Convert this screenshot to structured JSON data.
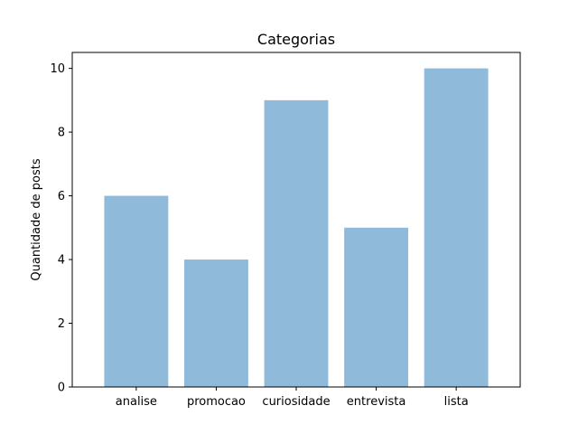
{
  "chart_data": {
    "type": "bar",
    "title": "Categorias",
    "xlabel": "",
    "ylabel": "Quantidade de posts",
    "categories": [
      "analise",
      "promocao",
      "curiosidade",
      "entrevista",
      "lista"
    ],
    "values": [
      6,
      4,
      9,
      5,
      10
    ],
    "ylim": [
      0,
      10.5
    ],
    "yticks": [
      0,
      2,
      4,
      6,
      8,
      10
    ],
    "ytick_labels": [
      "0",
      "2",
      "4",
      "6",
      "8",
      "10"
    ],
    "bar_color": "#8fbad9",
    "grid": false,
    "legend": "none"
  }
}
